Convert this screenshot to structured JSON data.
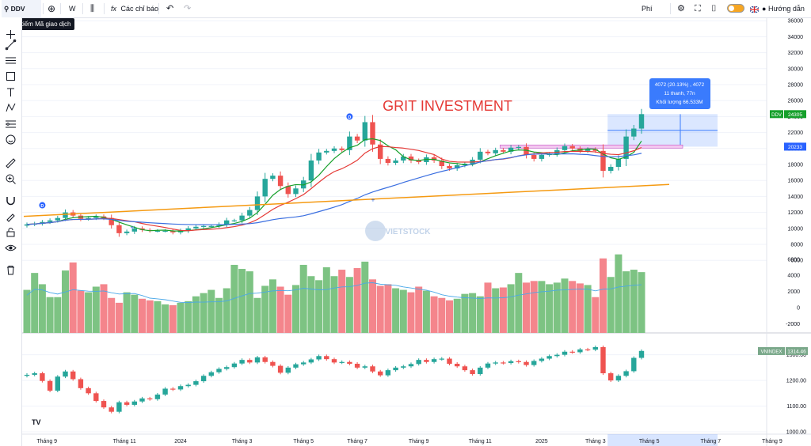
{
  "toolbar": {
    "symbol": "DDV",
    "interval": "W",
    "indicators_label": "Các chỉ báo",
    "fee_label": "Phí",
    "guide_label": "Hướng dẫn",
    "search_tooltip": "Tìm kiếm Mã giao dịch"
  },
  "icons": [
    "search-icon",
    "add-symbol-icon",
    "candle-type-icon",
    "indicator-fx-icon",
    "undo-icon",
    "redo-icon",
    "settings-icon",
    "fullscreen-icon",
    "camera-icon",
    "theme-toggle-icon",
    "flag-uk-icon",
    "user-icon",
    "crosshair-icon",
    "trend-line-icon",
    "horizontal-lines-icon",
    "rectangle-icon",
    "text-icon",
    "pattern-icon",
    "fib-icon",
    "emoji-icon",
    "ruler-icon",
    "zoom-in-icon",
    "magnet-icon",
    "lock-draw-icon",
    "lock-icon",
    "eye-icon",
    "trash-icon"
  ],
  "colors": {
    "up": "#26a69a",
    "down": "#ef5350",
    "vol_up": "#7dc383",
    "vol_down": "#f4858c",
    "ma_green": "#16a02b",
    "ma_red": "#e53935",
    "ma_blue": "#3b6fe0",
    "ma_orange": "#f59a12",
    "vol_ma": "#4aa8e8",
    "watermark": "#e53935"
  },
  "chart_data": {
    "type": "candlestick",
    "watermark_text": "GRIT INVESTMENT",
    "logo_text": "VIETSTOCK",
    "price_axis": {
      "ticks": [
        36000,
        34000,
        32000,
        30000,
        28000,
        26000,
        24000,
        22000,
        20000,
        18000,
        16000,
        14000,
        12000,
        10000,
        8000,
        6000
      ],
      "range": [
        6000,
        36000
      ]
    },
    "volume_axis": {
      "ticks": [
        6000,
        4000,
        2000,
        0,
        -2000
      ]
    },
    "index_axis": {
      "ticks": [
        1300.0,
        1200.0,
        1100.0,
        1000.0
      ],
      "range": [
        1000,
        1350
      ]
    },
    "time_labels": [
      "Tháng 9",
      "Tháng 11",
      "2024",
      "Tháng 3",
      "Tháng 5",
      "Tháng 7",
      "Tháng 9",
      "Tháng 11",
      "2025",
      "Tháng 3",
      "Tháng 5",
      "Tháng 7",
      "Tháng 9"
    ],
    "current_time_label": "Tháng 5",
    "last_price_label": {
      "symbol": "DDV",
      "value": "24305"
    },
    "measure_bottom_label": "20233",
    "measure_tooltip": [
      "4072 (20.13%) , 4072",
      "11 thanh, 77n",
      "Khối lượng 66.533M"
    ],
    "index_label": {
      "symbol": "VNINDEX",
      "value": "1314.46"
    },
    "dividend_markers": [
      "D",
      "D"
    ],
    "ddv_close": [
      10500,
      10600,
      10800,
      11000,
      11300,
      12000,
      11600,
      11200,
      11300,
      11500,
      11300,
      10400,
      9400,
      9600,
      10000,
      9800,
      9700,
      9700,
      9700,
      9500,
      9700,
      10000,
      10200,
      10300,
      10300,
      10500,
      11000,
      11000,
      11600,
      12300,
      14000,
      16200,
      16600,
      15300,
      14300,
      15000,
      16000,
      18500,
      19500,
      19700,
      20000,
      19800,
      21500,
      21000,
      23300,
      20500,
      18700,
      18200,
      18500,
      19000,
      18500,
      18300,
      18900,
      18500,
      17800,
      17500,
      17900,
      18100,
      18600,
      19600,
      19400,
      19800,
      19600,
      20100,
      20200,
      19200,
      18700,
      19200,
      19300,
      19800,
      20300,
      20000,
      19700,
      19900,
      19700,
      17200,
      17700,
      18700,
      21500,
      22500,
      24305
    ],
    "vnindex_close": [
      1222,
      1228,
      1198,
      1160,
      1215,
      1235,
      1205,
      1170,
      1150,
      1120,
      1095,
      1078,
      1115,
      1105,
      1118,
      1130,
      1127,
      1145,
      1168,
      1165,
      1178,
      1183,
      1197,
      1218,
      1232,
      1245,
      1252,
      1266,
      1280,
      1270,
      1290,
      1272,
      1257,
      1230,
      1250,
      1263,
      1270,
      1282,
      1295,
      1283,
      1270,
      1272,
      1265,
      1250,
      1255,
      1235,
      1220,
      1240,
      1250,
      1255,
      1264,
      1280,
      1272,
      1283,
      1285,
      1265,
      1255,
      1240,
      1225,
      1250,
      1266,
      1270,
      1268,
      1275,
      1272,
      1260,
      1276,
      1285,
      1295,
      1300,
      1312,
      1310,
      1321,
      1320,
      1330,
      1228,
      1200,
      1218,
      1236,
      1288,
      1315
    ],
    "volume": [
      2200,
      4300,
      2900,
      1300,
      1300,
      4600,
      5600,
      2100,
      1900,
      2600,
      2900,
      1200,
      600,
      1900,
      1600,
      1100,
      900,
      800,
      400,
      300,
      600,
      800,
      1400,
      1800,
      2200,
      1200,
      2400,
      5300,
      4800,
      4500,
      1200,
      2700,
      3500,
      2600,
      1600,
      2800,
      5300,
      3900,
      3400,
      5000,
      3900,
      4700,
      3800,
      4900,
      5700,
      3500,
      2700,
      2900,
      2400,
      2200,
      1900,
      2600,
      2100,
      1400,
      1200,
      900,
      1100,
      1700,
      1800,
      1400,
      3100,
      2400,
      2500,
      2900,
      4300,
      3100,
      3300,
      3300,
      2900,
      3100,
      3600,
      3300,
      3000,
      2800,
      1300,
      6100,
      3800,
      6600,
      4500,
      4700,
      4400
    ]
  }
}
